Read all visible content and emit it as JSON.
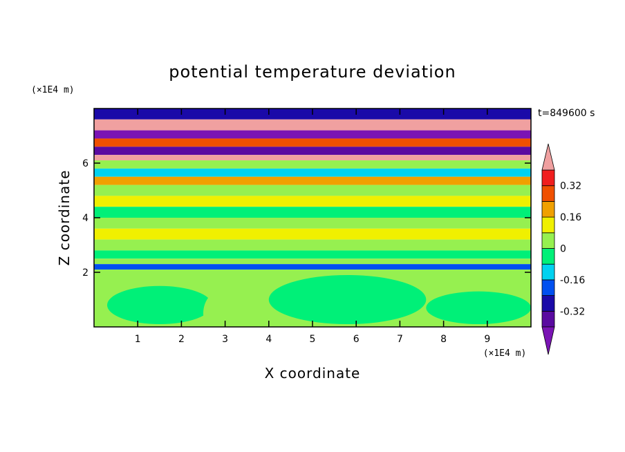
{
  "chart_data": {
    "type": "heatmap",
    "title": "potential temperature deviation",
    "xlabel": "X coordinate",
    "ylabel": "Z coordinate",
    "x_unit": "(×1E4 m)",
    "y_unit": "(×1E4 m)",
    "time_label": "t=849600 s",
    "xlim": [
      0,
      10
    ],
    "ylim": [
      0,
      8
    ],
    "x_ticks": [
      1,
      2,
      3,
      4,
      5,
      6,
      7,
      8,
      9
    ],
    "y_ticks": [
      2,
      4,
      6
    ],
    "colorbar": {
      "levels": [
        -0.4,
        -0.32,
        -0.24,
        -0.16,
        -0.08,
        0,
        0.08,
        0.16,
        0.24,
        0.32,
        0.4
      ],
      "labels": [
        "0.32",
        "0.16",
        "0",
        "-0.16",
        "-0.32"
      ],
      "label_values": [
        0.32,
        0.16,
        0,
        -0.16,
        -0.32
      ],
      "colors": [
        "#5a0aa0",
        "#1a0aa8",
        "#0050f0",
        "#00d2f0",
        "#00f078",
        "#96f050",
        "#f0f000",
        "#f0a000",
        "#f05000",
        "#f01e1e"
      ],
      "under_color": "#7a14b4",
      "over_color": "#f0a0a0"
    },
    "bands": [
      {
        "z": [
          7.6,
          8.0
        ],
        "value": -0.32
      },
      {
        "z": [
          7.2,
          7.6
        ],
        "value": 0.44
      },
      {
        "z": [
          6.9,
          7.2
        ],
        "value": -0.44
      },
      {
        "z": [
          6.6,
          6.9
        ],
        "value": 0.28
      },
      {
        "z": [
          6.3,
          6.6
        ],
        "value": -0.36
      },
      {
        "z": [
          6.1,
          6.3
        ],
        "value": 0.44
      },
      {
        "z": [
          5.8,
          6.1
        ],
        "value": 0.04
      },
      {
        "z": [
          5.5,
          5.8
        ],
        "value": -0.12
      },
      {
        "z": [
          5.2,
          5.5
        ],
        "value": 0.2
      },
      {
        "z": [
          4.8,
          5.2
        ],
        "value": 0.04
      },
      {
        "z": [
          4.4,
          4.8
        ],
        "value": 0.12
      },
      {
        "z": [
          4.0,
          4.4
        ],
        "value": -0.04
      },
      {
        "z": [
          3.6,
          4.0
        ],
        "value": 0.04
      },
      {
        "z": [
          3.2,
          3.6
        ],
        "value": 0.12
      },
      {
        "z": [
          2.8,
          3.2
        ],
        "value": 0.04
      },
      {
        "z": [
          2.5,
          2.8
        ],
        "value": -0.04
      },
      {
        "z": [
          2.3,
          2.5
        ],
        "value": 0.04
      },
      {
        "z": [
          2.1,
          2.3
        ],
        "value": -0.2
      },
      {
        "z": [
          0,
          2.1
        ],
        "value": 0.04
      }
    ],
    "lower_blobs": [
      {
        "x": 1.5,
        "z": 0.8,
        "rx": 1.2,
        "rz": 0.7,
        "value": -0.04
      },
      {
        "x": 5.8,
        "z": 1.0,
        "rx": 1.8,
        "rz": 0.9,
        "value": -0.04
      },
      {
        "x": 8.8,
        "z": 0.7,
        "rx": 1.2,
        "rz": 0.6,
        "value": -0.04
      },
      {
        "x": 3.0,
        "z": 0.5,
        "rx": 0.5,
        "rz": 0.9,
        "value": 0.04
      }
    ]
  }
}
